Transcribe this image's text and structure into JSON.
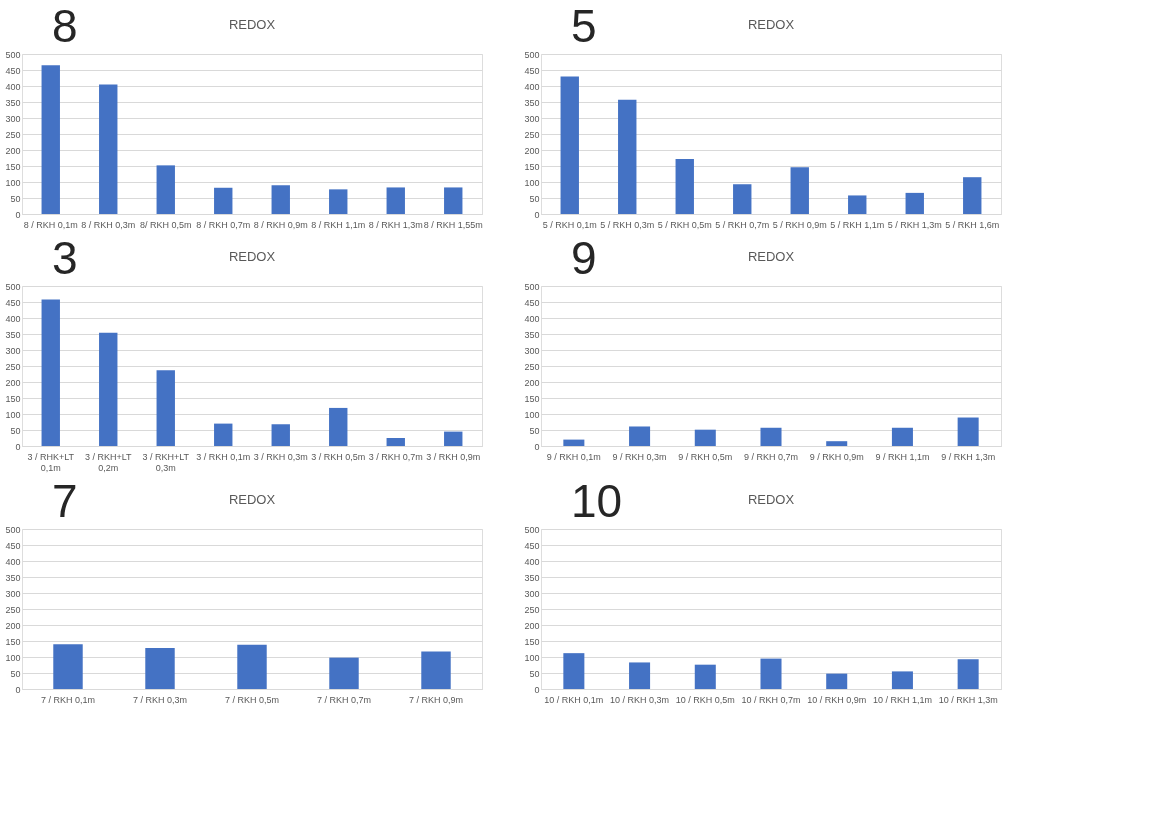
{
  "chart_data": [
    {
      "type": "bar",
      "title": "REDOX",
      "annotations": [
        "8"
      ],
      "categories": [
        "8 / RKH 0,1m",
        "8 / RKH 0,3m",
        "8/ RKH 0,5m",
        "8 / RKH 0,7m",
        "8 / RKH 0,9m",
        "8 / RKH 1,1m",
        "8 / RKH 1,3m",
        "8 / RKH 1,55m"
      ],
      "values": [
        465,
        405,
        152,
        82,
        90,
        77,
        83,
        83
      ],
      "color": "#4472c4",
      "ylim": [
        0,
        500
      ],
      "yticks": [
        0,
        50,
        100,
        150,
        200,
        250,
        300,
        350,
        400,
        450,
        500
      ],
      "grid": "y",
      "legend": false
    },
    {
      "type": "bar",
      "title": "REDOX",
      "annotations": [
        "5"
      ],
      "categories": [
        "5 / RKH 0,1m",
        "5 / RKH 0,3m",
        "5 / RKH 0,5m",
        "5 / RKH 0,7m",
        "5 / RKH 0,9m",
        "5 / RKH 1,1m",
        "5 / RKH 1,3m",
        "5 / RKH 1,6m"
      ],
      "values": [
        430,
        357,
        172,
        93,
        146,
        58,
        66,
        115
      ],
      "color": "#4472c4",
      "ylim": [
        0,
        500
      ],
      "yticks": [
        0,
        50,
        100,
        150,
        200,
        250,
        300,
        350,
        400,
        450,
        500
      ],
      "grid": "y",
      "legend": false
    },
    {
      "type": "bar",
      "title": "REDOX",
      "annotations": [
        "3"
      ],
      "categories": [
        "3 / RHK+LT 0,1m",
        "3 / RKH+LT 0,2m",
        "3 / RKH+LT 0,3m",
        "3 / RKH 0,1m",
        "3 / RKH 0,3m",
        "3 / RKH 0,5m",
        "3 / RKH 0,7m",
        "3 / RKH 0,9m"
      ],
      "values": [
        458,
        354,
        237,
        70,
        68,
        119,
        25,
        45
      ],
      "color": "#4472c4",
      "ylim": [
        0,
        500
      ],
      "yticks": [
        0,
        50,
        100,
        150,
        200,
        250,
        300,
        350,
        400,
        450,
        500
      ],
      "grid": "y",
      "legend": false
    },
    {
      "type": "bar",
      "title": "REDOX",
      "annotations": [
        "9"
      ],
      "categories": [
        "9 / RKH 0,1m",
        "9 / RKH 0,3m",
        "9 / RKH 0,5m",
        "9 / RKH 0,7m",
        "9 / RKH 0,9m",
        "9 / RKH 1,1m",
        "9 / RKH 1,3m"
      ],
      "values": [
        20,
        61,
        51,
        57,
        15,
        57,
        89
      ],
      "color": "#4472c4",
      "ylim": [
        0,
        500
      ],
      "yticks": [
        0,
        50,
        100,
        150,
        200,
        250,
        300,
        350,
        400,
        450,
        500
      ],
      "grid": "y",
      "legend": false
    },
    {
      "type": "bar",
      "title": "REDOX",
      "annotations": [
        "7"
      ],
      "categories": [
        "7 / RKH  0,1m",
        "7 / RKH 0,3m",
        "7 / RKH 0,5m",
        "7 / RKH 0,7m",
        "7 / RKH 0,9m"
      ],
      "values": [
        140,
        128,
        138,
        98,
        117
      ],
      "color": "#4472c4",
      "ylim": [
        0,
        500
      ],
      "yticks": [
        0,
        50,
        100,
        150,
        200,
        250,
        300,
        350,
        400,
        450,
        500
      ],
      "grid": "y",
      "legend": false
    },
    {
      "type": "bar",
      "title": "REDOX",
      "annotations": [
        "10"
      ],
      "categories": [
        "10 / RKH 0,1m",
        "10 / RKH 0,3m",
        "10 / RKH 0,5m",
        "10 / RKH 0,7m",
        "10 / RKH 0,9m",
        "10 / RKH 1,1m",
        "10 / RKH 1,3m"
      ],
      "values": [
        112,
        83,
        76,
        95,
        48,
        55,
        93
      ],
      "color": "#4472c4",
      "ylim": [
        0,
        500
      ],
      "yticks": [
        0,
        50,
        100,
        150,
        200,
        250,
        300,
        350,
        400,
        450,
        500
      ],
      "grid": "y",
      "legend": false
    }
  ]
}
